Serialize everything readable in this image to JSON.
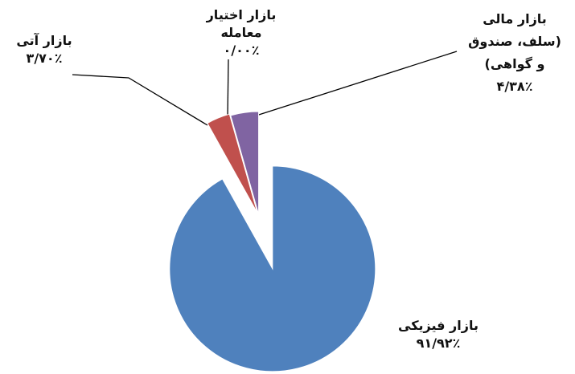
{
  "chart_data": {
    "type": "pie",
    "categories": [
      "بازار فیزیکی",
      "بازار آتی",
      "بازار اختیار معامله",
      "بازار مالی (سلف، صندوق و گواهی)"
    ],
    "values": [
      91.92,
      3.7,
      0.0,
      4.38
    ],
    "value_labels": [
      "۹۱/۹۲٪",
      "۳/۷۰٪",
      "۰/۰۰٪",
      "۴/۳۸٪"
    ],
    "colors": [
      "#4f81bd",
      "#c0504d",
      "#9bbb59",
      "#8064a2"
    ]
  }
}
